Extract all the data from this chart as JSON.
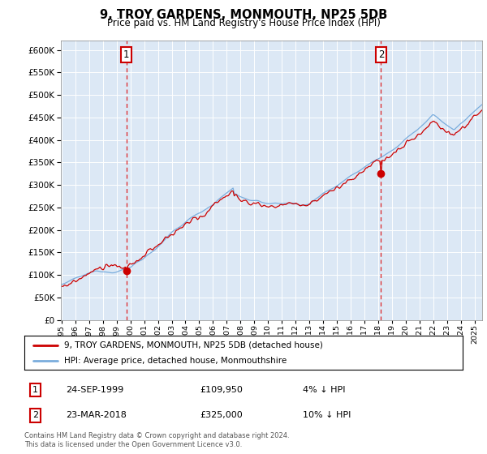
{
  "title": "9, TROY GARDENS, MONMOUTH, NP25 5DB",
  "subtitle": "Price paid vs. HM Land Registry's House Price Index (HPI)",
  "ytick_values": [
    0,
    50000,
    100000,
    150000,
    200000,
    250000,
    300000,
    350000,
    400000,
    450000,
    500000,
    550000,
    600000
  ],
  "ylim": [
    0,
    620000
  ],
  "hpi_color": "#7aaddd",
  "price_color": "#cc0000",
  "bg_color": "#dce8f5",
  "transaction1": {
    "date": "24-SEP-1999",
    "price": 109950,
    "label": "1",
    "hpi_diff": "4% ↓ HPI",
    "year": 1999.71
  },
  "transaction2": {
    "date": "23-MAR-2018",
    "price": 325000,
    "label": "2",
    "hpi_diff": "10% ↓ HPI",
    "year": 2018.21
  },
  "legend_line1": "9, TROY GARDENS, MONMOUTH, NP25 5DB (detached house)",
  "legend_line2": "HPI: Average price, detached house, Monmouthshire",
  "footer": "Contains HM Land Registry data © Crown copyright and database right 2024.\nThis data is licensed under the Open Government Licence v3.0.",
  "xstart_year": 1995,
  "xend_year": 2025
}
